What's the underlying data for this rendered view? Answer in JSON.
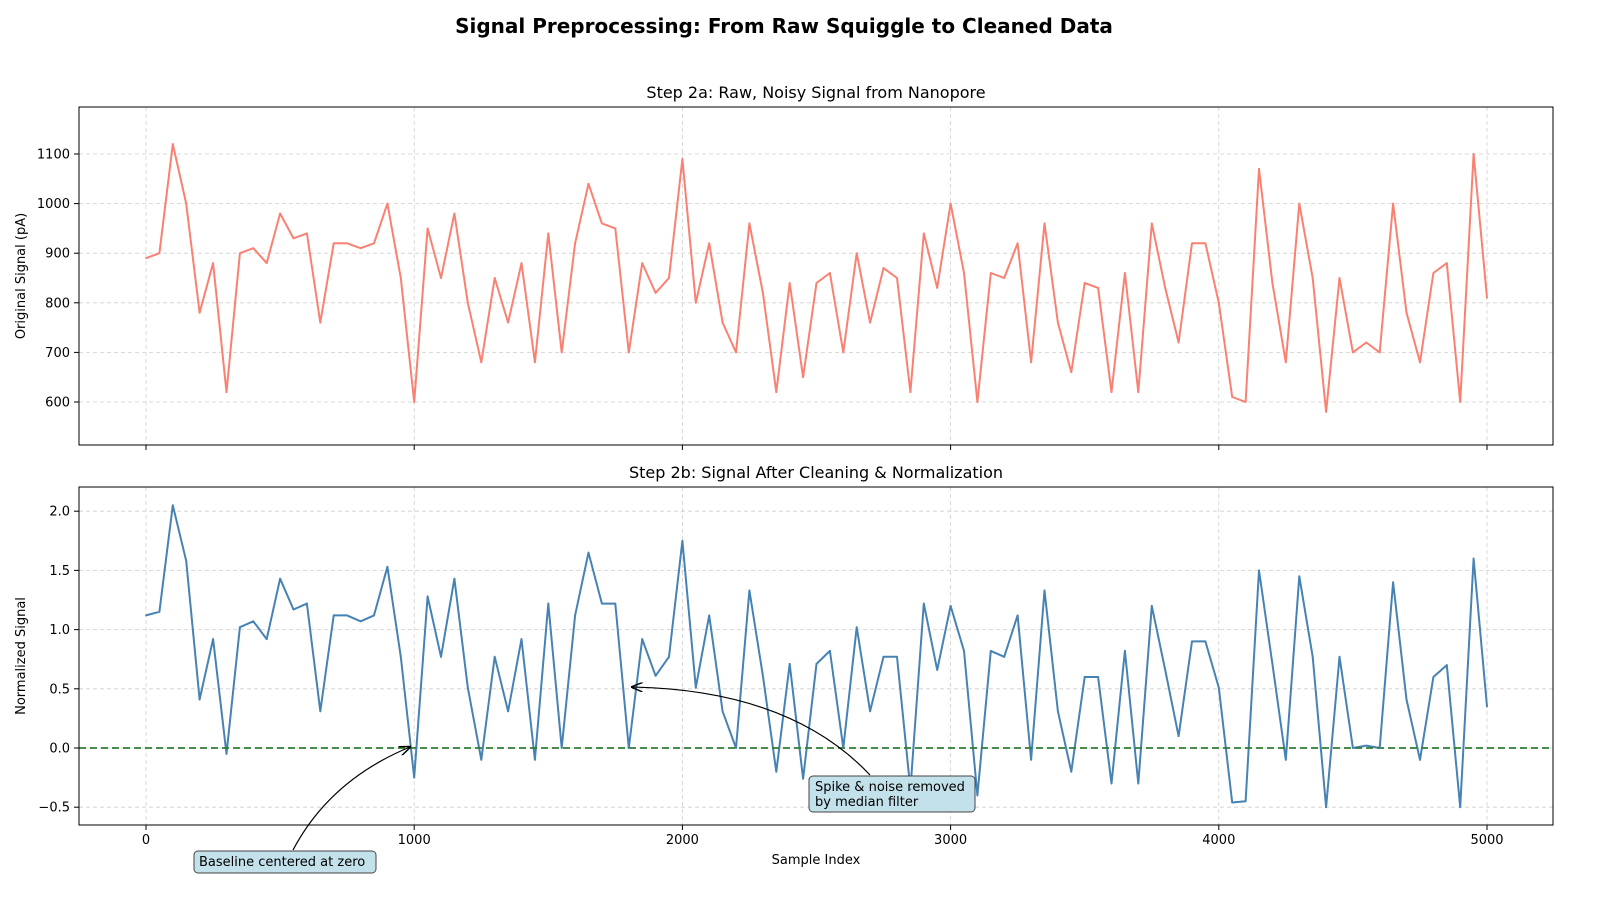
{
  "title": "Signal Preprocessing: From Raw Squiggle to Cleaned Data",
  "colors": {
    "raw": "#FA8072",
    "normalized": "#4682B4",
    "baseline": "#2E7D32",
    "annotation_box": "#C3E1EA"
  },
  "chart_data": [
    {
      "type": "line",
      "title": "Step 2a: Raw, Noisy Signal from Nanopore",
      "xlabel": "",
      "ylabel": "Original Signal (pA)",
      "xlim": [
        -250,
        5250
      ],
      "ylim": [
        540,
        1190
      ],
      "grid": true,
      "xticks": [
        0,
        1000,
        2000,
        3000,
        4000,
        5000
      ],
      "yticks": [
        "600",
        "700",
        "800",
        "900",
        "1000",
        "1100"
      ],
      "x_step": 50,
      "values": [
        890,
        900,
        1120,
        1000,
        780,
        880,
        620,
        900,
        910,
        880,
        980,
        930,
        940,
        760,
        920,
        920,
        910,
        920,
        1000,
        850,
        600,
        950,
        850,
        980,
        800,
        680,
        850,
        760,
        880,
        680,
        940,
        700,
        920,
        1040,
        960,
        950,
        700,
        880,
        820,
        850,
        1090,
        800,
        920,
        760,
        700,
        960,
        820,
        620,
        840,
        650,
        840,
        860,
        700,
        900,
        760,
        870,
        850,
        620,
        940,
        830,
        1000,
        860,
        600,
        860,
        850,
        920,
        680,
        960,
        760,
        660,
        840,
        830,
        620,
        860,
        620,
        960,
        830,
        720,
        920,
        920,
        800,
        610,
        600,
        1070,
        840,
        680,
        1000,
        850,
        580,
        850,
        700,
        720,
        700,
        1000,
        780,
        680,
        860,
        880,
        600,
        1100,
        810
      ]
    },
    {
      "type": "line",
      "title": "Step 2b: Signal After Cleaning & Normalization",
      "xlabel": "Sample Index",
      "ylabel": "Normalized Signal",
      "xlim": [
        -250,
        5250
      ],
      "ylim": [
        -0.65,
        2.2
      ],
      "grid": true,
      "xticks": [
        "0",
        "1000",
        "2000",
        "3000",
        "4000",
        "5000"
      ],
      "yticks": [
        "−0.5",
        "0.0",
        "0.5",
        "1.0",
        "1.5",
        "2.0"
      ],
      "x_step": 50,
      "values": [
        1.12,
        1.15,
        2.05,
        1.58,
        0.41,
        0.92,
        -0.05,
        1.02,
        1.07,
        0.92,
        1.43,
        1.17,
        1.22,
        0.31,
        1.12,
        1.12,
        1.07,
        1.12,
        1.53,
        0.77,
        -0.25,
        1.28,
        0.77,
        1.43,
        0.51,
        -0.1,
        0.77,
        0.31,
        0.92,
        -0.1,
        1.22,
        0.0,
        1.12,
        1.65,
        1.22,
        1.22,
        0.0,
        0.92,
        0.61,
        0.77,
        1.75,
        0.51,
        1.12,
        0.31,
        0.0,
        1.33,
        0.61,
        -0.2,
        0.71,
        -0.26,
        0.71,
        0.82,
        0.0,
        1.02,
        0.31,
        0.77,
        0.77,
        -0.35,
        1.22,
        0.66,
        1.2,
        0.82,
        -0.4,
        0.82,
        0.77,
        1.12,
        -0.1,
        1.33,
        0.31,
        -0.2,
        0.6,
        0.6,
        -0.3,
        0.82,
        -0.3,
        1.2,
        0.66,
        0.1,
        0.9,
        0.9,
        0.51,
        -0.46,
        -0.45,
        1.5,
        0.71,
        -0.1,
        1.45,
        0.77,
        -0.5,
        0.77,
        0.0,
        0.02,
        0.0,
        1.4,
        0.41,
        -0.1,
        0.6,
        0.7,
        -0.5,
        1.6,
        0.35
      ],
      "reference_line": {
        "y": 0.0,
        "style": "dashed"
      },
      "annotations": [
        {
          "text_line1": "Spike & noise removed",
          "text_line2": "by median filter",
          "x": 1800,
          "y": 0.5
        },
        {
          "text_line1": "Baseline centered at zero",
          "x": 1000,
          "y": 0.0
        }
      ]
    }
  ]
}
